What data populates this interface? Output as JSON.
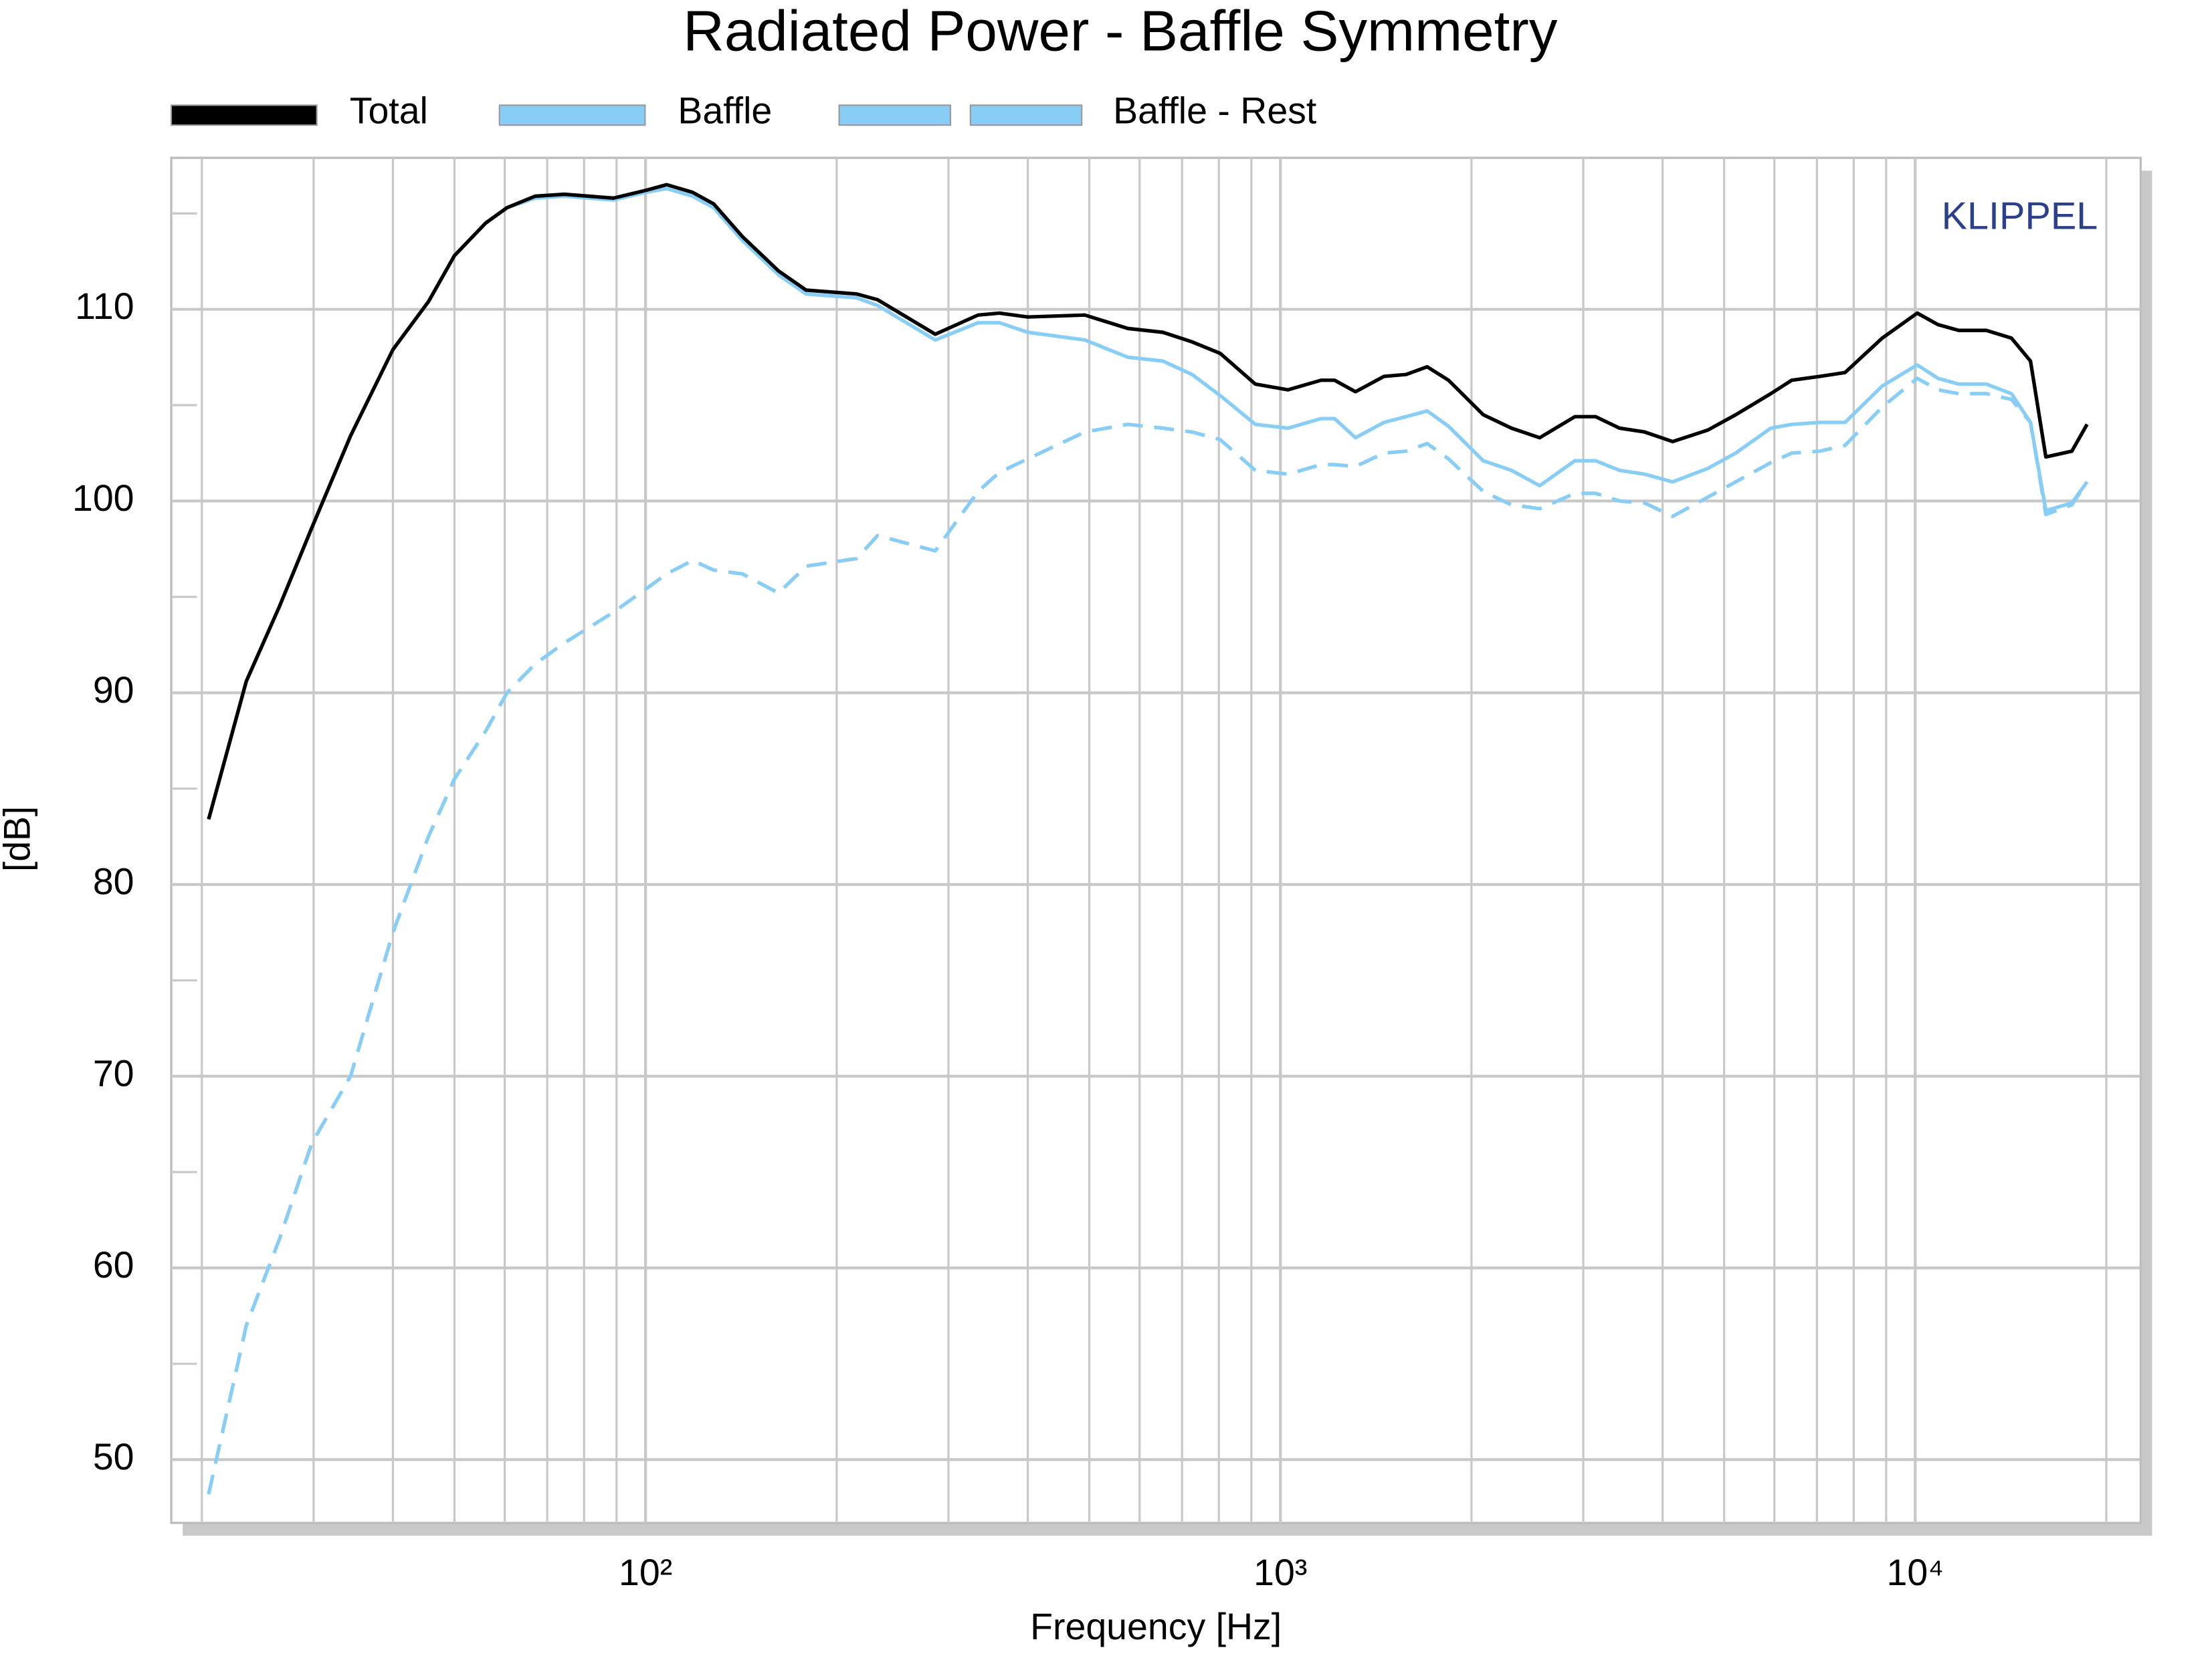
{
  "chart_data": {
    "type": "line",
    "title": "Radiated Power - Baffle Symmetry",
    "xlabel": "Frequency [Hz]",
    "ylabel": "[dB]",
    "annotation": "KLIPPEL",
    "xscale": "log",
    "grid": true,
    "xlim": [
      17.9,
      22650
    ],
    "ylim": [
      46.7,
      117.9
    ],
    "xticks": [
      {
        "value": 100,
        "label": "10²"
      },
      {
        "value": 1000,
        "label": "10³"
      },
      {
        "value": 10000,
        "label": "10⁴"
      }
    ],
    "xminorticks": [
      20,
      30,
      40,
      50,
      60,
      70,
      80,
      90,
      200,
      300,
      400,
      500,
      600,
      700,
      800,
      900,
      2000,
      3000,
      4000,
      5000,
      6000,
      7000,
      8000,
      9000,
      20000
    ],
    "yticks": [
      50,
      60,
      70,
      80,
      90,
      100,
      110
    ],
    "yminorticks": [
      55,
      65,
      75,
      85,
      95,
      105,
      115
    ],
    "x": [
      20.5,
      23.5,
      26.5,
      29.8,
      34.3,
      40,
      45.5,
      50,
      56,
      60.5,
      67,
      74.5,
      89,
      100,
      108,
      118.6,
      128,
      142,
      162,
      179,
      215,
      232,
      286,
      334,
      361,
      400,
      492,
      575,
      653,
      726,
      804,
      913,
      1028,
      1159,
      1217,
      1313,
      1456,
      1578,
      1703,
      1840,
      2087,
      2312,
      2561,
      2910,
      3137,
      3422,
      3748,
      4149,
      4712,
      5215,
      5922,
      6390,
      7075,
      7751,
      8873,
      10072,
      10860,
      11708,
      12940,
      14173,
      15190,
      16060,
      17650,
      18650
    ],
    "series": [
      {
        "name": "Total",
        "color": "#000000",
        "style": "solid",
        "values": [
          83.4,
          90.6,
          94.5,
          98.6,
          103.4,
          107.9,
          110.4,
          112.8,
          114.5,
          115.3,
          115.9,
          116.0,
          115.8,
          116.2,
          116.5,
          116.1,
          115.5,
          113.8,
          112.0,
          111.0,
          110.8,
          110.5,
          108.7,
          109.7,
          109.8,
          109.6,
          109.7,
          109.0,
          108.8,
          108.3,
          107.7,
          106.1,
          105.8,
          106.3,
          106.3,
          105.7,
          106.5,
          106.6,
          107.0,
          106.3,
          104.5,
          103.8,
          103.3,
          104.4,
          104.4,
          103.8,
          103.6,
          103.1,
          103.7,
          104.5,
          105.6,
          106.3,
          106.5,
          106.7,
          108.5,
          109.8,
          109.2,
          108.9,
          108.9,
          108.5,
          107.3,
          102.3,
          102.6,
          104.0
        ]
      },
      {
        "name": "Baffle",
        "color": "#87cdf5",
        "style": "solid",
        "values": [
          83.4,
          90.6,
          94.5,
          98.6,
          103.4,
          107.9,
          110.4,
          112.8,
          114.5,
          115.3,
          115.8,
          115.9,
          115.7,
          116.1,
          116.3,
          115.9,
          115.3,
          113.6,
          111.8,
          110.8,
          110.6,
          110.2,
          108.4,
          109.3,
          109.3,
          108.8,
          108.4,
          107.5,
          107.3,
          106.6,
          105.5,
          104.0,
          103.8,
          104.3,
          104.3,
          103.3,
          104.1,
          104.4,
          104.7,
          103.9,
          102.1,
          101.6,
          100.8,
          102.1,
          102.1,
          101.6,
          101.4,
          101.0,
          101.7,
          102.5,
          103.8,
          104.0,
          104.1,
          104.1,
          106.0,
          107.1,
          106.4,
          106.1,
          106.1,
          105.6,
          104.1,
          99.5,
          99.9,
          101.0
        ]
      },
      {
        "name": "Baffle - Rest",
        "color": "#87cdf5",
        "style": "dashed",
        "values": [
          48.2,
          57.0,
          61.5,
          66.5,
          70.0,
          77.5,
          82.5,
          85.5,
          88.0,
          90.0,
          91.5,
          92.6,
          94.2,
          95.4,
          96.2,
          96.9,
          96.4,
          96.2,
          95.2,
          96.6,
          97.0,
          98.2,
          97.4,
          100.5,
          101.5,
          102.2,
          103.6,
          104.0,
          103.8,
          103.6,
          103.2,
          101.6,
          101.4,
          101.9,
          101.9,
          101.8,
          102.5,
          102.6,
          103.0,
          102.2,
          100.5,
          99.8,
          99.6,
          100.4,
          100.4,
          100.0,
          99.9,
          99.2,
          100.2,
          101.0,
          102.0,
          102.5,
          102.6,
          102.9,
          104.9,
          106.4,
          105.8,
          105.6,
          105.6,
          105.3,
          104.1,
          99.3,
          99.8,
          101.0
        ]
      }
    ]
  }
}
